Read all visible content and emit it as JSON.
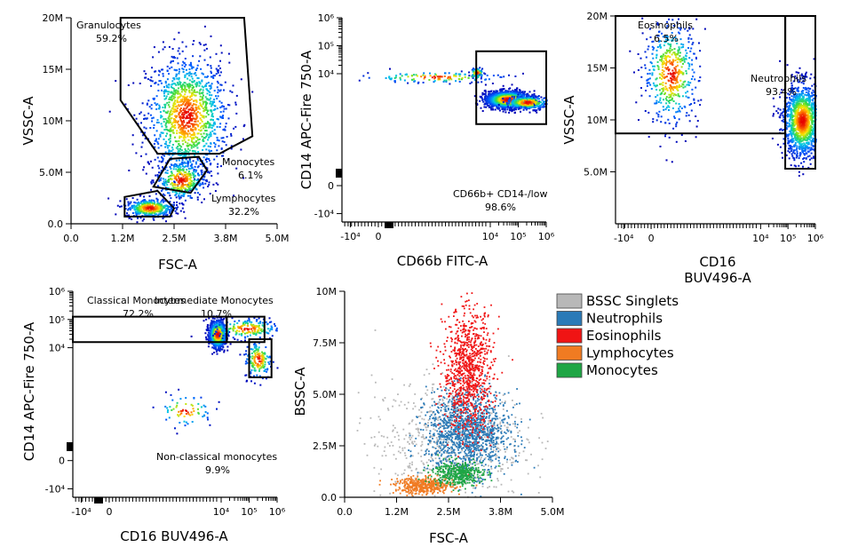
{
  "chart_data": [
    {
      "id": "p1",
      "type": "scatter",
      "title": "",
      "xlabel": "FSC-A",
      "ylabel": "VSSC-A",
      "xlim": [
        0,
        5000000
      ],
      "ylim": [
        0,
        20000000
      ],
      "xticks": [
        {
          "v": 0,
          "label": "0.0"
        },
        {
          "v": 1250000,
          "label": "1.2M"
        },
        {
          "v": 2500000,
          "label": "2.5M"
        },
        {
          "v": 3750000,
          "label": "3.8M"
        },
        {
          "v": 5000000,
          "label": "5.0M"
        }
      ],
      "yticks": [
        {
          "v": 0,
          "label": "0.0"
        },
        {
          "v": 5000000,
          "label": "5.0M"
        },
        {
          "v": 10000000,
          "label": "10M"
        },
        {
          "v": 15000000,
          "label": "15M"
        },
        {
          "v": 20000000,
          "label": "20M"
        }
      ],
      "clusters": [
        {
          "x": 2800000,
          "y": 10500000,
          "sx": 500000,
          "sy": 3000000,
          "n": 1300
        },
        {
          "x": 2650000,
          "y": 4300000,
          "sx": 300000,
          "sy": 1000000,
          "n": 380
        },
        {
          "x": 1900000,
          "y": 1600000,
          "sx": 300000,
          "sy": 450000,
          "n": 420
        }
      ],
      "gates": [
        {
          "name": "Granulocytes",
          "percent": "59.2%",
          "points": [
            [
              1200000,
              20000000
            ],
            [
              4200000,
              20000000
            ],
            [
              4400000,
              8500000
            ],
            [
              3600000,
              6800000
            ],
            [
              2100000,
              6800000
            ],
            [
              1200000,
              12000000
            ]
          ]
        },
        {
          "name": "Monocytes",
          "percent": "6.1%",
          "points": [
            [
              2000000,
              3600000
            ],
            [
              2400000,
              6300000
            ],
            [
              3100000,
              6500000
            ],
            [
              3300000,
              5200000
            ],
            [
              2900000,
              3000000
            ]
          ]
        },
        {
          "name": "Lymphocytes",
          "percent": "32.2%",
          "points": [
            [
              1300000,
              700000
            ],
            [
              1300000,
              2600000
            ],
            [
              2100000,
              3200000
            ],
            [
              2500000,
              1500000
            ],
            [
              2400000,
              700000
            ]
          ]
        }
      ]
    },
    {
      "id": "p2",
      "type": "scatter",
      "title": "",
      "xlabel": "CD66b FITC-A",
      "ylabel": "CD14 APC-Fire 750-A",
      "xlim": [
        -1.3,
        6
      ],
      "ylim": [
        -1.3,
        6
      ],
      "xticks": [
        {
          "v": -1,
          "label": "-10⁴"
        },
        {
          "v": 0,
          "label": "0"
        },
        {
          "v": 4,
          "label": "10⁴"
        },
        {
          "v": 5,
          "label": "10⁵"
        },
        {
          "v": 6,
          "label": "10⁶"
        }
      ],
      "yticks": [
        {
          "v": -1,
          "label": "-10⁴"
        },
        {
          "v": 0,
          "label": "0"
        },
        {
          "v": 4,
          "label": "10⁴"
        },
        {
          "v": 5,
          "label": "10⁵"
        },
        {
          "v": 6,
          "label": "10⁶"
        }
      ],
      "clusters": [
        {
          "x": 4.6,
          "y": 3.1,
          "sx": 0.4,
          "sy": 0.15,
          "n": 1500
        },
        {
          "x": 5.3,
          "y": 3.0,
          "sx": 0.4,
          "sy": 0.12,
          "n": 300
        },
        {
          "x": 3.5,
          "y": 4.05,
          "sx": 0.12,
          "sy": 0.1,
          "n": 70
        },
        {
          "x": 2.0,
          "y": 3.9,
          "sx": 1.3,
          "sy": 0.1,
          "n": 130
        }
      ],
      "gates": [
        {
          "name": "CD66b+ CD14-/low",
          "percent": "98.6%",
          "points": [
            [
              3.5,
              4.8
            ],
            [
              6.0,
              4.8
            ],
            [
              6.0,
              2.2
            ],
            [
              3.5,
              2.2
            ]
          ]
        }
      ]
    },
    {
      "id": "p3",
      "type": "scatter",
      "title": "",
      "xlabel": "CD16 BUV496-A",
      "ylabel": "VSSC-A",
      "xlim": [
        -1.3,
        6
      ],
      "ylim": [
        0,
        20000000
      ],
      "xticks": [
        {
          "v": -1,
          "label": "-10⁴"
        },
        {
          "v": 0,
          "label": "0"
        },
        {
          "v": 4,
          "label": "10⁴"
        },
        {
          "v": 5,
          "label": "10⁵"
        },
        {
          "v": 6,
          "label": "10⁶"
        }
      ],
      "yticks": [
        {
          "v": 5000000,
          "label": "5.0M"
        },
        {
          "v": 10000000,
          "label": "10M"
        },
        {
          "v": 15000000,
          "label": "15M"
        },
        {
          "v": 20000000,
          "label": "20M"
        }
      ],
      "clusters": [
        {
          "x": 0.7,
          "y": 14500000,
          "sx": 0.5,
          "sy": 2500000,
          "n": 520
        },
        {
          "x": 5.5,
          "y": 10000000,
          "sx": 0.35,
          "sy": 1800000,
          "n": 1300
        }
      ],
      "gates": [
        {
          "name": "Eosinophils",
          "percent": "6.5%",
          "points": [
            [
              -1.3,
              20000000
            ],
            [
              4.9,
              20000000
            ],
            [
              4.9,
              8700000
            ],
            [
              -1.3,
              8700000
            ]
          ]
        },
        {
          "name": "Neutrophils",
          "percent": "93.4%",
          "points": [
            [
              4.9,
              20000000
            ],
            [
              6.0,
              20000000
            ],
            [
              6.0,
              5300000
            ],
            [
              4.9,
              5300000
            ]
          ]
        }
      ]
    },
    {
      "id": "p4",
      "type": "scatter",
      "title": "",
      "xlabel": "CD16 BUV496-A",
      "ylabel": "CD14 APC-Fire 750-A",
      "xlim": [
        -1.3,
        6
      ],
      "ylim": [
        -1.3,
        6
      ],
      "xticks": [
        {
          "v": -1,
          "label": "-10⁴"
        },
        {
          "v": 0,
          "label": "0"
        },
        {
          "v": 4,
          "label": "10⁴"
        },
        {
          "v": 5,
          "label": "10⁵"
        },
        {
          "v": 6,
          "label": "10⁶"
        }
      ],
      "yticks": [
        {
          "v": -1,
          "label": "-10⁴"
        },
        {
          "v": 0,
          "label": "0"
        },
        {
          "v": 4,
          "label": "10⁴"
        },
        {
          "v": 5,
          "label": "10⁵"
        },
        {
          "v": 6,
          "label": "10⁶"
        }
      ],
      "clusters": [
        {
          "x": 3.85,
          "y": 4.5,
          "sx": 0.15,
          "sy": 0.25,
          "n": 800
        },
        {
          "x": 4.9,
          "y": 4.7,
          "sx": 0.6,
          "sy": 0.18,
          "n": 200
        },
        {
          "x": 5.3,
          "y": 3.6,
          "sx": 0.25,
          "sy": 0.35,
          "n": 170
        },
        {
          "x": 2.7,
          "y": 1.8,
          "sx": 0.5,
          "sy": 0.3,
          "n": 70
        }
      ],
      "gates": [
        {
          "name": "Classical Monocytes",
          "percent": "72.2%",
          "points": [
            [
              -1.3,
              5.1
            ],
            [
              4.2,
              5.1
            ],
            [
              4.2,
              4.2
            ],
            [
              -1.3,
              4.2
            ]
          ]
        },
        {
          "name": "Intermediate Monocytes",
          "percent": "10.7%",
          "points": [
            [
              4.2,
              5.1
            ],
            [
              5.55,
              5.1
            ],
            [
              5.55,
              4.2
            ],
            [
              4.2,
              4.2
            ]
          ]
        },
        {
          "name": "Non-classical monocytes",
          "percent": "9.9%",
          "points": [
            [
              5.0,
              4.3
            ],
            [
              5.8,
              4.3
            ],
            [
              5.8,
              2.95
            ],
            [
              5.0,
              2.95
            ]
          ]
        }
      ]
    },
    {
      "id": "p5",
      "type": "scatter",
      "title": "",
      "xlabel": "FSC-A",
      "ylabel": "BSSC-A",
      "xlim": [
        0,
        5000000
      ],
      "ylim": [
        0,
        10000000
      ],
      "xticks": [
        {
          "v": 0,
          "label": "0.0"
        },
        {
          "v": 1250000,
          "label": "1.2M"
        },
        {
          "v": 2500000,
          "label": "2.5M"
        },
        {
          "v": 3750000,
          "label": "3.8M"
        },
        {
          "v": 5000000,
          "label": "5.0M"
        }
      ],
      "yticks": [
        {
          "v": 0,
          "label": "0.0"
        },
        {
          "v": 2500000,
          "label": "2.5M"
        },
        {
          "v": 5000000,
          "label": "5.0M"
        },
        {
          "v": 7500000,
          "label": "7.5M"
        },
        {
          "v": 10000000,
          "label": "10M"
        }
      ],
      "legend_position": "right",
      "series": [
        {
          "name": "BSSC Singlets",
          "color": "#b8b8b8",
          "x": 2500000,
          "y": 2800000,
          "sx": 900000,
          "sy": 1500000,
          "n": 700
        },
        {
          "name": "Neutrophils",
          "color": "#2a7ab7",
          "x": 2950000,
          "y": 3200000,
          "sx": 500000,
          "sy": 1000000,
          "n": 1300
        },
        {
          "name": "Eosinophils",
          "color": "#f01414",
          "x": 2950000,
          "y": 6200000,
          "sx": 300000,
          "sy": 1500000,
          "n": 900
        },
        {
          "name": "Lymphocytes",
          "color": "#f07b22",
          "x": 1900000,
          "y": 600000,
          "sx": 350000,
          "sy": 200000,
          "n": 420
        },
        {
          "name": "Monocytes",
          "color": "#1fa645",
          "x": 2700000,
          "y": 1200000,
          "sx": 300000,
          "sy": 300000,
          "n": 400
        }
      ]
    }
  ]
}
